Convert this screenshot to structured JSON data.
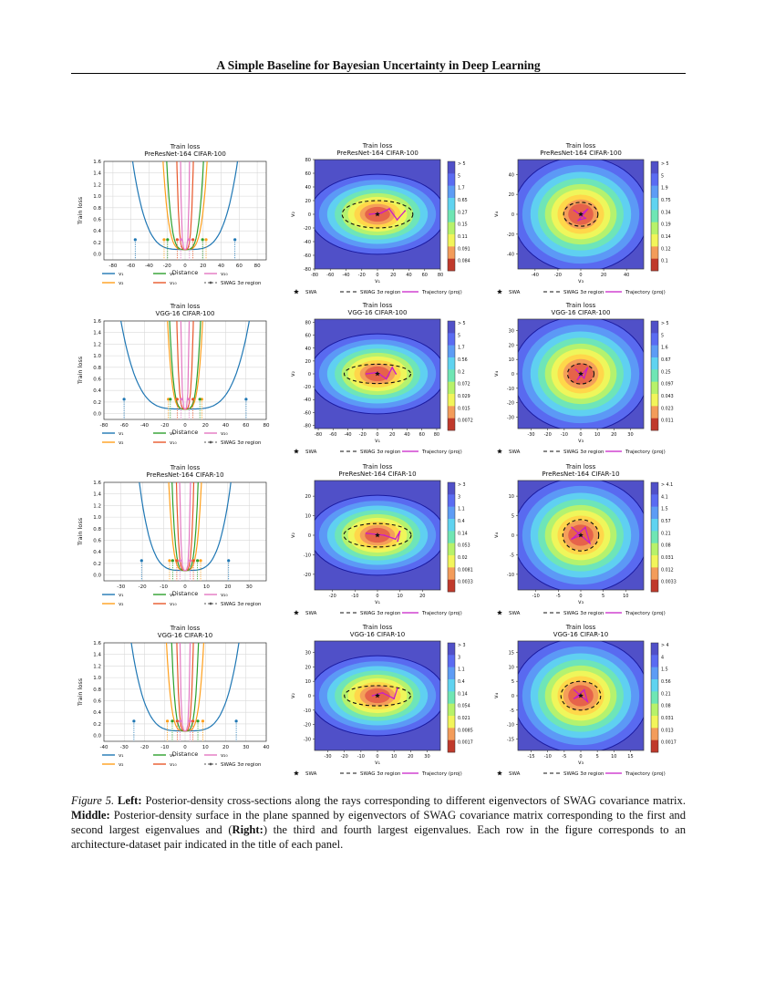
{
  "header": {
    "running_title": "A Simple Baseline for Bayesian Uncertainty in Deep Learning"
  },
  "caption": {
    "figure_label": "Figure 5.",
    "left_label": "Left:",
    "text1": " Posterior-density cross-sections along the rays corresponding to different eigenvectors of SWAG covariance matrix. ",
    "middle_label": "Middle:",
    "text2": " Posterior-density surface in the plane spanned by eigenvectors of SWAG covariance matrix corresponding to the first and second largest eigenvalues and (",
    "right_label": "Right:",
    "text3": ") the third and fourth largest eigenvalues. Each row in the figure corresponds to an architecture-dataset pair indicated in the title of each panel."
  },
  "colors": {
    "v1": "#1f77b4",
    "v2": "#ff9f1c",
    "v5": "#2ca02c",
    "v10": "#e8572a",
    "v20": "#e377c2",
    "contour": [
      "#c0392b",
      "#e5604a",
      "#f39c5a",
      "#ffd54a",
      "#f2f55a",
      "#b7f26a",
      "#6fe6b4",
      "#5fd3f0",
      "#5d9cf5",
      "#5a6bf2",
      "#5050c8"
    ]
  },
  "chart_data": [
    {
      "type": "line",
      "title": "Train loss",
      "subtitle": "PreResNet-164 CIFAR-100",
      "xlabel": "Distance",
      "ylabel": "Train loss",
      "xlim": [
        -90,
        90
      ],
      "ylim": [
        -0.1,
        1.6
      ],
      "xticks": [
        -80,
        -60,
        -40,
        -20,
        0,
        20,
        40,
        60,
        80
      ],
      "yticks": [
        0.0,
        0.2,
        0.4,
        0.6,
        0.8,
        1.0,
        1.2,
        1.4,
        1.6
      ],
      "widths": {
        "v1": 57,
        "v2": 24,
        "v5": 20,
        "v10": 9,
        "v20": 5
      },
      "legend": [
        "v₁",
        "v₂",
        "v₅",
        "v₁₀",
        "v₂₀",
        "SWAG 3σ region"
      ]
    },
    {
      "type": "line",
      "title": "Train loss",
      "subtitle": "VGG-16 CIFAR-100",
      "xlabel": "Distance",
      "ylabel": "Train loss",
      "xlim": [
        -80,
        80
      ],
      "ylim": [
        -0.1,
        1.6
      ],
      "xticks": [
        -80,
        -60,
        -40,
        -20,
        0,
        20,
        40,
        60,
        80
      ],
      "yticks": [
        0.0,
        0.2,
        0.4,
        0.6,
        0.8,
        1.0,
        1.2,
        1.4,
        1.6
      ],
      "widths": {
        "v1": 62,
        "v2": 17,
        "v5": 15,
        "v10": 8,
        "v20": 4
      },
      "legend": [
        "v₁",
        "v₂",
        "v₅",
        "v₁₀",
        "v₂₀",
        "SWAG 3σ region"
      ]
    },
    {
      "type": "line",
      "title": "Train loss",
      "subtitle": "PreResNet-164 CIFAR-10",
      "xlabel": "Distance",
      "ylabel": "Train loss",
      "xlim": [
        -38,
        38
      ],
      "ylim": [
        -0.1,
        1.6
      ],
      "xticks": [
        -30,
        -20,
        -10,
        0,
        10,
        20,
        30
      ],
      "yticks": [
        0.0,
        0.2,
        0.4,
        0.6,
        0.8,
        1.0,
        1.2,
        1.4,
        1.6
      ],
      "widths": {
        "v1": 21,
        "v2": 7.5,
        "v5": 6,
        "v10": 4,
        "v20": 2.5
      },
      "legend": [
        "v₁",
        "v₂",
        "v₅",
        "v₁₀",
        "v₂₀",
        "SWAG 3σ region"
      ]
    },
    {
      "type": "line",
      "title": "Train loss",
      "subtitle": "VGG-16 CIFAR-10",
      "xlabel": "Distance",
      "ylabel": "Train loss",
      "xlim": [
        -40,
        40
      ],
      "ylim": [
        -0.1,
        1.6
      ],
      "xticks": [
        -40,
        -30,
        -20,
        -10,
        0,
        10,
        20,
        30,
        40
      ],
      "yticks": [
        0.0,
        0.2,
        0.4,
        0.6,
        0.8,
        1.0,
        1.2,
        1.4,
        1.6
      ],
      "widths": {
        "v1": 26,
        "v2": 9,
        "v5": 6.5,
        "v10": 4,
        "v20": 2.5
      },
      "legend": [
        "v₁",
        "v₂",
        "v₅",
        "v₁₀",
        "v₂₀",
        "SWAG 3σ region"
      ]
    },
    {
      "type": "heatmap",
      "title": "Train loss",
      "subtitle": "PreResNet-164 CIFAR-100",
      "xlabel": "v₁",
      "ylabel": "v₂",
      "xlim": [
        -80,
        80
      ],
      "ylim": [
        -80,
        80
      ],
      "xticks": [
        -80,
        -60,
        -40,
        -20,
        0,
        20,
        40,
        60,
        80
      ],
      "yticks": [
        -80,
        -60,
        -40,
        -20,
        0,
        20,
        40,
        60,
        80
      ],
      "colorbar": [
        "> 5",
        "5",
        "1.7",
        "0.65",
        "0.27",
        "0.15",
        "0.11",
        "0.091",
        "0.084"
      ],
      "swa": [
        0,
        0
      ],
      "sigma_region": [
        45,
        20
      ],
      "trajectory": [
        [
          -10,
          0
        ],
        [
          5,
          2
        ],
        [
          15,
          8
        ],
        [
          25,
          -8
        ],
        [
          35,
          5
        ]
      ],
      "legend": [
        "SWA",
        "SWAG 3σ region",
        "Trajectory (proj)"
      ]
    },
    {
      "type": "heatmap",
      "title": "Train loss",
      "subtitle": "PreResNet-164 CIFAR-100",
      "xlabel": "v₃",
      "ylabel": "v₄",
      "xlim": [
        -55,
        55
      ],
      "ylim": [
        -55,
        55
      ],
      "xticks": [
        -40,
        -20,
        0,
        20,
        40
      ],
      "yticks": [
        -40,
        -20,
        0,
        20,
        40
      ],
      "colorbar": [
        "> 5",
        "5",
        "1.9",
        "0.75",
        "0.34",
        "0.19",
        "0.14",
        "0.12",
        "0.1"
      ],
      "swa": [
        0,
        0
      ],
      "sigma_region": [
        15,
        12
      ],
      "trajectory": [
        [
          -6,
          4
        ],
        [
          4,
          -4
        ],
        [
          -2,
          -6
        ],
        [
          6,
          5
        ],
        [
          0,
          0
        ]
      ],
      "legend": [
        "SWA",
        "SWAG 3σ region",
        "Trajectory (proj)"
      ]
    },
    {
      "type": "heatmap",
      "title": "Train loss",
      "subtitle": "VGG-16 CIFAR-100",
      "xlabel": "v₁",
      "ylabel": "v₂",
      "xlim": [
        -85,
        85
      ],
      "ylim": [
        -85,
        85
      ],
      "xticks": [
        -80,
        -60,
        -40,
        -20,
        0,
        20,
        40,
        60,
        80
      ],
      "yticks": [
        -80,
        -60,
        -40,
        -20,
        0,
        20,
        40,
        60,
        80
      ],
      "colorbar": [
        "> 5",
        "5",
        "1.7",
        "0.56",
        "0.2",
        "0.072",
        "0.029",
        "0.015",
        "0.0072"
      ],
      "swa": [
        0,
        0
      ],
      "sigma_region": [
        45,
        15
      ],
      "trajectory": [
        [
          -15,
          0
        ],
        [
          0,
          2
        ],
        [
          12,
          -8
        ],
        [
          20,
          10
        ],
        [
          25,
          0
        ]
      ],
      "legend": [
        "SWA",
        "SWAG 3σ region",
        "Trajectory (proj)"
      ]
    },
    {
      "type": "heatmap",
      "title": "Train loss",
      "subtitle": "VGG-16 CIFAR-100",
      "xlabel": "v₃",
      "ylabel": "v₄",
      "xlim": [
        -38,
        38
      ],
      "ylim": [
        -38,
        38
      ],
      "xticks": [
        -30,
        -20,
        -10,
        0,
        10,
        20,
        30
      ],
      "yticks": [
        -30,
        -20,
        -10,
        0,
        10,
        20,
        30
      ],
      "colorbar": [
        "> 5",
        "5",
        "1.6",
        "0.67",
        "0.25",
        "0.097",
        "0.043",
        "0.023",
        "0.011"
      ],
      "swa": [
        0,
        0
      ],
      "sigma_region": [
        8,
        7
      ],
      "trajectory": [
        [
          -3,
          3
        ],
        [
          2,
          -3
        ],
        [
          4,
          4
        ],
        [
          -2,
          -4
        ],
        [
          0,
          0
        ]
      ],
      "legend": [
        "SWA",
        "SWAG 3σ region",
        "Trajectory (proj)"
      ]
    },
    {
      "type": "heatmap",
      "title": "Train loss",
      "subtitle": "PreResNet-164 CIFAR-10",
      "xlabel": "v₁",
      "ylabel": "v₂",
      "xlim": [
        -28,
        28
      ],
      "ylim": [
        -28,
        28
      ],
      "xticks": [
        -20,
        -10,
        0,
        10,
        20
      ],
      "yticks": [
        -20,
        -10,
        0,
        10,
        20
      ],
      "colorbar": [
        "> 3",
        "3",
        "1.1",
        "0.4",
        "0.14",
        "0.053",
        "0.02",
        "0.0081",
        "0.0033"
      ],
      "swa": [
        0,
        0
      ],
      "sigma_region": [
        15,
        6
      ],
      "trajectory": [
        [
          -5,
          1
        ],
        [
          3,
          0
        ],
        [
          8,
          -2
        ],
        [
          10,
          2
        ],
        [
          9,
          -3
        ]
      ],
      "legend": [
        "SWA",
        "SWAG 3σ region",
        "Trajectory (proj)"
      ]
    },
    {
      "type": "heatmap",
      "title": "Train loss",
      "subtitle": "PreResNet-164 CIFAR-10",
      "xlabel": "v₃",
      "ylabel": "v₄",
      "xlim": [
        -14,
        14
      ],
      "ylim": [
        -14,
        14
      ],
      "xticks": [
        -10,
        -5,
        0,
        5,
        10
      ],
      "yticks": [
        -10,
        -5,
        0,
        5,
        10
      ],
      "colorbar": [
        "> 4.1",
        "4.1",
        "1.5",
        "0.57",
        "0.21",
        "0.08",
        "0.031",
        "0.012",
        "0.0033"
      ],
      "swa": [
        0,
        0
      ],
      "sigma_region": [
        4,
        4
      ],
      "trajectory": [
        [
          -2,
          2
        ],
        [
          2,
          -2
        ],
        [
          1,
          2
        ],
        [
          -2,
          -1
        ],
        [
          0,
          0
        ]
      ],
      "legend": [
        "SWA",
        "SWAG 3σ region",
        "Trajectory (proj)"
      ]
    },
    {
      "type": "heatmap",
      "title": "Train loss",
      "subtitle": "VGG-16 CIFAR-10",
      "xlabel": "v₁",
      "ylabel": "v₂",
      "xlim": [
        -38,
        38
      ],
      "ylim": [
        -38,
        38
      ],
      "xticks": [
        -30,
        -20,
        -10,
        0,
        10,
        20,
        30
      ],
      "yticks": [
        -30,
        -20,
        -10,
        0,
        10,
        20,
        30
      ],
      "colorbar": [
        "> 3",
        "3",
        "1.1",
        "0.4",
        "0.14",
        "0.054",
        "0.021",
        "0.0085",
        "0.0017"
      ],
      "swa": [
        0,
        0
      ],
      "sigma_region": [
        20,
        7
      ],
      "trajectory": [
        [
          -3,
          0
        ],
        [
          3,
          2
        ],
        [
          10,
          -2
        ],
        [
          12,
          5
        ]
      ],
      "legend": [
        "SWA",
        "SWAG 3σ region",
        "Trajectory (proj)"
      ]
    },
    {
      "type": "heatmap",
      "title": "Train loss",
      "subtitle": "VGG-16 CIFAR-10",
      "xlabel": "v₃",
      "ylabel": "v₄",
      "xlim": [
        -19,
        19
      ],
      "ylim": [
        -19,
        19
      ],
      "xticks": [
        -15,
        -10,
        -5,
        0,
        5,
        10,
        15
      ],
      "yticks": [
        -15,
        -10,
        -5,
        0,
        5,
        10,
        15
      ],
      "colorbar": [
        "> 4",
        "4",
        "1.5",
        "0.56",
        "0.21",
        "0.08",
        "0.031",
        "0.013",
        "0.0017"
      ],
      "swa": [
        0,
        0
      ],
      "sigma_region": [
        6,
        5
      ],
      "trajectory": [
        [
          -2,
          2
        ],
        [
          2,
          -2
        ],
        [
          1,
          2
        ],
        [
          -2,
          -1
        ],
        [
          0,
          0
        ]
      ],
      "legend": [
        "SWA",
        "SWAG 3σ region",
        "Trajectory (proj)"
      ]
    }
  ]
}
